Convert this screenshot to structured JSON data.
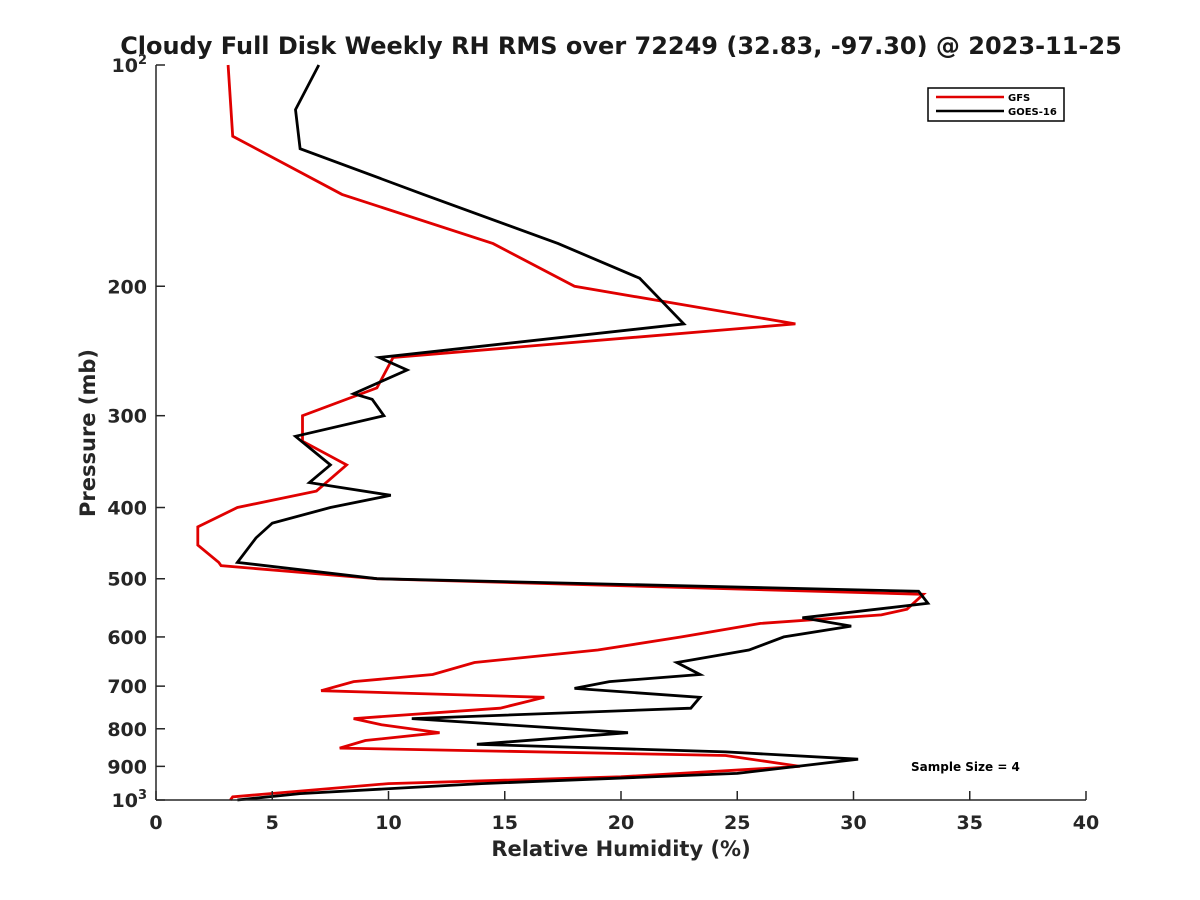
{
  "chart_data": {
    "type": "line",
    "title": "Cloudy Full Disk Weekly RH RMS over 72249 (32.83, -97.30) @ 2023-11-25",
    "xlabel": "Relative Humidity (%)",
    "ylabel": "Pressure (mb)",
    "xlim": [
      0,
      40
    ],
    "ylim": [
      100,
      1000
    ],
    "yscale": "log",
    "y_reversed": true,
    "grid": false,
    "legend_position": "top-right",
    "x_ticks": [
      "0",
      "5",
      "10",
      "15",
      "20",
      "25",
      "30",
      "35",
      "40"
    ],
    "x_tick_values": [
      0,
      5,
      10,
      15,
      20,
      25,
      30,
      35,
      40
    ],
    "y_ticks": [
      {
        "value": 100,
        "base": "10",
        "exp": "2"
      },
      {
        "value": 200,
        "label": "200"
      },
      {
        "value": 300,
        "label": "300"
      },
      {
        "value": 400,
        "label": "400"
      },
      {
        "value": 500,
        "label": "500"
      },
      {
        "value": 600,
        "label": "600"
      },
      {
        "value": 700,
        "label": "700"
      },
      {
        "value": 800,
        "label": "800"
      },
      {
        "value": 900,
        "label": "900"
      },
      {
        "value": 1000,
        "base": "10",
        "exp": "3"
      }
    ],
    "annotation": "Sample Size = 4",
    "series": [
      {
        "name": "GFS",
        "color": "#e00000",
        "points": [
          [
            3.1,
            100
          ],
          [
            3.3,
            125
          ],
          [
            8.0,
            150
          ],
          [
            14.5,
            175
          ],
          [
            18.0,
            200
          ],
          [
            27.5,
            225
          ],
          [
            10.2,
            250
          ],
          [
            9.5,
            275
          ],
          [
            6.3,
            300
          ],
          [
            6.3,
            325
          ],
          [
            8.2,
            350
          ],
          [
            6.9,
            380
          ],
          [
            3.5,
            400
          ],
          [
            1.8,
            425
          ],
          [
            1.8,
            450
          ],
          [
            2.7,
            475
          ],
          [
            2.8,
            480
          ],
          [
            9.5,
            500
          ],
          [
            33.0,
            525
          ],
          [
            32.3,
            550
          ],
          [
            31.2,
            560
          ],
          [
            26.0,
            575
          ],
          [
            22.6,
            600
          ],
          [
            19.0,
            625
          ],
          [
            13.7,
            650
          ],
          [
            11.9,
            675
          ],
          [
            8.5,
            690
          ],
          [
            7.1,
            710
          ],
          [
            16.7,
            725
          ],
          [
            14.8,
            750
          ],
          [
            8.5,
            775
          ],
          [
            9.7,
            790
          ],
          [
            12.2,
            810
          ],
          [
            9.0,
            830
          ],
          [
            7.9,
            850
          ],
          [
            24.5,
            870
          ],
          [
            27.7,
            900
          ],
          [
            20.0,
            930
          ],
          [
            10.0,
            950
          ],
          [
            3.3,
            990
          ],
          [
            3.2,
            1000
          ]
        ]
      },
      {
        "name": "GOES-16",
        "color": "#000000",
        "points": [
          [
            7.0,
            100
          ],
          [
            6.0,
            115
          ],
          [
            6.2,
            130
          ],
          [
            11.5,
            150
          ],
          [
            17.3,
            175
          ],
          [
            20.8,
            195
          ],
          [
            22.7,
            225
          ],
          [
            9.6,
            250
          ],
          [
            10.8,
            260
          ],
          [
            8.5,
            280
          ],
          [
            9.3,
            285
          ],
          [
            9.8,
            300
          ],
          [
            6.0,
            320
          ],
          [
            7.5,
            350
          ],
          [
            6.6,
            370
          ],
          [
            10.1,
            385
          ],
          [
            7.5,
            400
          ],
          [
            5.0,
            420
          ],
          [
            4.3,
            440
          ],
          [
            3.5,
            475
          ],
          [
            9.5,
            500
          ],
          [
            32.8,
            520
          ],
          [
            33.2,
            540
          ],
          [
            27.8,
            565
          ],
          [
            29.9,
            580
          ],
          [
            27.0,
            600
          ],
          [
            25.5,
            625
          ],
          [
            22.4,
            650
          ],
          [
            23.4,
            675
          ],
          [
            19.5,
            690
          ],
          [
            18.0,
            705
          ],
          [
            23.4,
            725
          ],
          [
            23.0,
            750
          ],
          [
            11.0,
            775
          ],
          [
            20.3,
            810
          ],
          [
            13.8,
            840
          ],
          [
            24.5,
            860
          ],
          [
            30.2,
            880
          ],
          [
            25.0,
            920
          ],
          [
            14.0,
            950
          ],
          [
            6.2,
            980
          ],
          [
            3.5,
            1000
          ]
        ]
      }
    ]
  }
}
